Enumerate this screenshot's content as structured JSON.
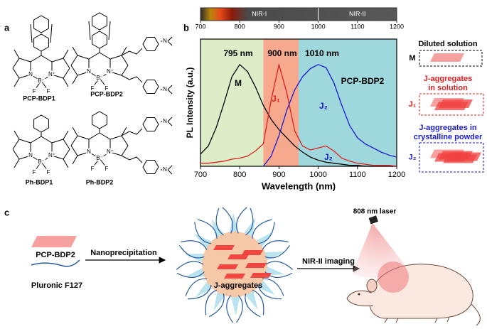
{
  "panel_a": {
    "label": "a",
    "structures": [
      {
        "name": "PCP-BDP1",
        "atoms": [
          "N",
          "N⁺",
          "B⁻",
          "F",
          "F"
        ]
      },
      {
        "name": "PCP-BDP2",
        "atoms": [
          "N",
          "N⁺",
          "B⁻",
          "F",
          "F",
          "N",
          "N"
        ]
      },
      {
        "name": "Ph-BDP1",
        "atoms": [
          "N",
          "N⁺",
          "B⁻",
          "F",
          "F"
        ]
      },
      {
        "name": "Ph-BDP2",
        "atoms": [
          "N",
          "N⁺",
          "B⁻",
          "F",
          "F",
          "N",
          "N"
        ]
      }
    ]
  },
  "chart_data": {
    "type": "line",
    "panel_label": "b",
    "x_label": "Wavelength (nm)",
    "y_label": "PL Intensity (a.u.)",
    "x": [
      700,
      720,
      740,
      760,
      780,
      800,
      820,
      840,
      860,
      880,
      900,
      920,
      940,
      960,
      980,
      1000,
      1020,
      1040,
      1060,
      1080,
      1100,
      1120,
      1140,
      1160,
      1180,
      1200
    ],
    "series": [
      {
        "name": "M",
        "color": "#000000",
        "values": [
          0.12,
          0.2,
          0.38,
          0.62,
          0.88,
          1.0,
          0.93,
          0.78,
          0.6,
          0.46,
          0.36,
          0.28,
          0.2,
          0.14,
          0.09,
          0.06,
          0.04,
          0.03,
          0.02,
          0.01,
          0.01,
          0,
          0,
          0,
          0,
          0
        ]
      },
      {
        "name": "J₁",
        "color": "#e02020",
        "values": [
          0.03,
          0.03,
          0.04,
          0.05,
          0.07,
          0.08,
          0.1,
          0.15,
          0.22,
          0.65,
          1.0,
          0.72,
          0.35,
          0.2,
          0.16,
          0.18,
          0.2,
          0.15,
          0.08,
          0.05,
          0.03,
          0.02,
          0.01,
          0.01,
          0.01,
          0
        ]
      },
      {
        "name": "J₂",
        "color": "#1a1ad0",
        "values": [
          null,
          null,
          null,
          null,
          null,
          null,
          null,
          null,
          0,
          0.1,
          0.3,
          0.55,
          0.75,
          0.88,
          0.96,
          1.0,
          0.97,
          0.82,
          0.6,
          0.4,
          0.28,
          0.22,
          0.18,
          0.14,
          0.11,
          0.09
        ]
      }
    ],
    "xlim": [
      700,
      1200
    ],
    "ylim": [
      0,
      1.25
    ],
    "xticks": [
      700,
      800,
      900,
      1000,
      1100,
      1200
    ],
    "regions": [
      {
        "from": 700,
        "to": 860,
        "color": "#dcedc8"
      },
      {
        "from": 860,
        "to": 950,
        "color": "#f6a98c"
      },
      {
        "from": 950,
        "to": 1200,
        "color": "#9fd8dc"
      }
    ],
    "annotations": [
      "795 nm",
      "900 nm",
      "1010 nm",
      "J₂",
      "PCP-BDP2"
    ],
    "spectrum_bar": {
      "ticks": [
        700,
        800,
        900,
        1000,
        1100,
        1200
      ],
      "bands": [
        {
          "label": "NIR-I",
          "from": 700,
          "to": 1000
        },
        {
          "label": "NIR-II",
          "from": 1000,
          "to": 1200
        }
      ]
    }
  },
  "legend_panel": {
    "items": [
      {
        "title": [
          "Diluted solution"
        ],
        "key": "M",
        "color": "#000000"
      },
      {
        "title": [
          "J-aggregates",
          "in solution"
        ],
        "key": "J₁",
        "color": "#e02020"
      },
      {
        "title": [
          "J-aggregates in",
          "crystalline powder"
        ],
        "key": "J₂",
        "color": "#1a1ad0"
      }
    ]
  },
  "panel_c": {
    "label": "c",
    "dye": "PCP-BDP2",
    "polymer": "Pluronic F127",
    "step1": "Nanoprecipitation",
    "nanoparticle": "J-aggregates",
    "step2": "NIR-II imaging",
    "laser": "808 nm laser"
  }
}
